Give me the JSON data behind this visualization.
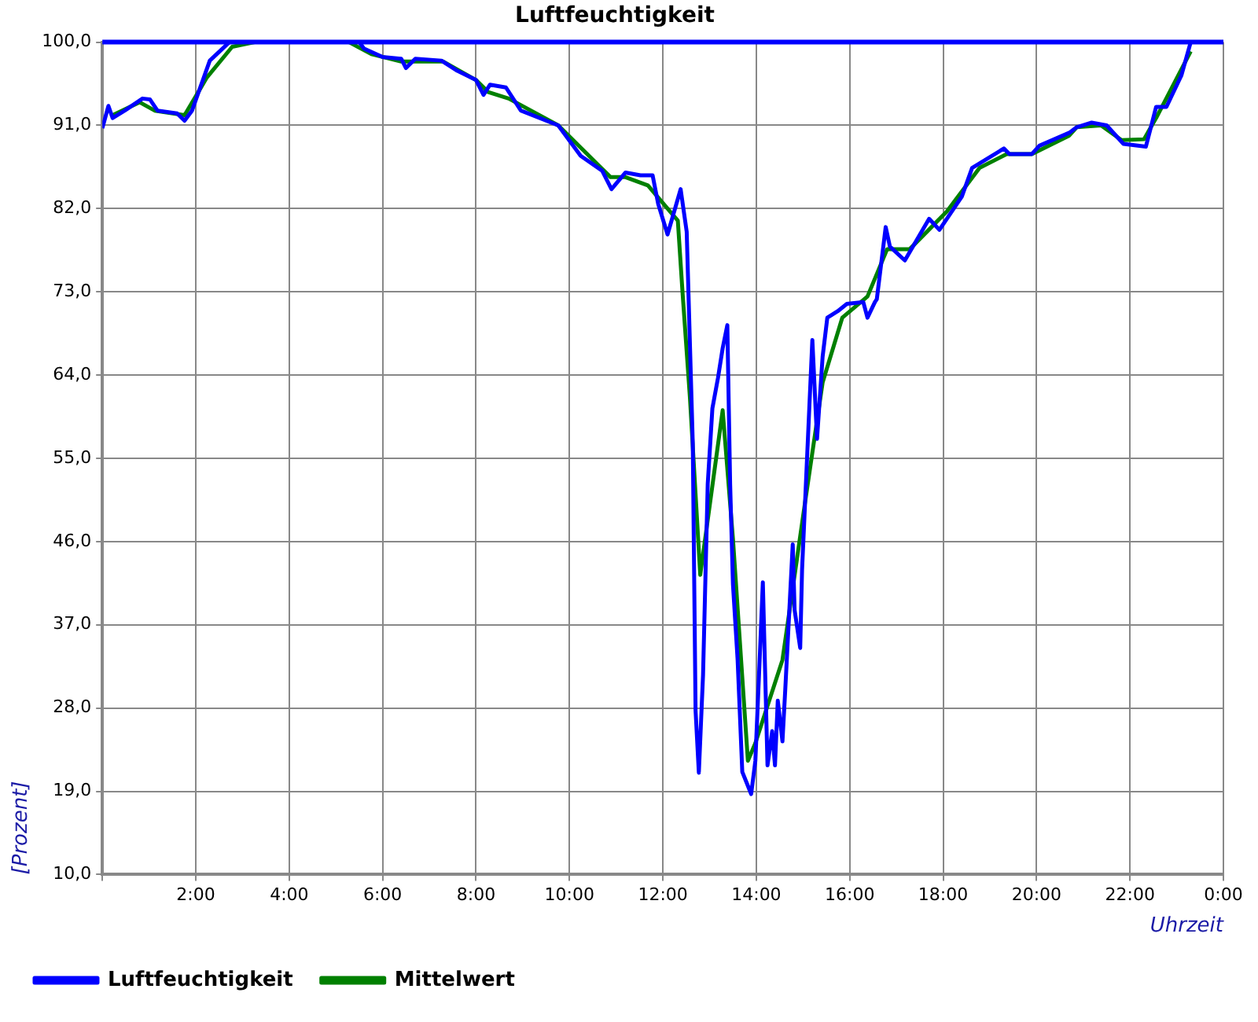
{
  "chart_data": {
    "type": "line",
    "title": "Luftfeuchtigkeit",
    "xlabel": "Uhrzeit",
    "ylabel": "[Prozent]",
    "xlim": [
      0,
      24
    ],
    "ylim": [
      10,
      100
    ],
    "xticks": [
      {
        "value": 0,
        "label": null
      },
      {
        "value": 2,
        "label": "2:00"
      },
      {
        "value": 4,
        "label": "4:00"
      },
      {
        "value": 6,
        "label": "6:00"
      },
      {
        "value": 8,
        "label": "8:00"
      },
      {
        "value": 10,
        "label": "10:00"
      },
      {
        "value": 12,
        "label": "12:00"
      },
      {
        "value": 14,
        "label": "14:00"
      },
      {
        "value": 16,
        "label": "16:00"
      },
      {
        "value": 18,
        "label": "18:00"
      },
      {
        "value": 20,
        "label": "20:00"
      },
      {
        "value": 22,
        "label": "22:00"
      },
      {
        "value": 24,
        "label": "0:00"
      }
    ],
    "yticks": [
      {
        "value": 10,
        "label": "10,0"
      },
      {
        "value": 19,
        "label": "19,0"
      },
      {
        "value": 28,
        "label": "28,0"
      },
      {
        "value": 37,
        "label": "37,0"
      },
      {
        "value": 46,
        "label": "46,0"
      },
      {
        "value": 55,
        "label": "55,0"
      },
      {
        "value": 64,
        "label": "64,0"
      },
      {
        "value": 73,
        "label": "73,0"
      },
      {
        "value": 82,
        "label": "82,0"
      },
      {
        "value": 91,
        "label": "91,0"
      },
      {
        "value": 100,
        "label": "100,0"
      }
    ],
    "grid": true,
    "legend": "bottom left",
    "marker": "none",
    "line_style": "solid",
    "ref_lines": [
      {
        "axis": "y",
        "value": 100,
        "color": "#0000ff"
      }
    ],
    "series": [
      {
        "name": "Luftfeuchtigkeit",
        "color": "#0000ff",
        "x": [
          0,
          0.13,
          0.22,
          0.48,
          0.86,
          1.02,
          1.18,
          1.6,
          1.76,
          1.92,
          2.3,
          2.72,
          5.5,
          5.6,
          6,
          6.4,
          6.5,
          6.7,
          7.26,
          7.6,
          8,
          8.16,
          8.3,
          8.64,
          8.96,
          9.76,
          10.24,
          10.7,
          10.9,
          11.2,
          11.52,
          11.78,
          11.9,
          12.1,
          12.38,
          12.51,
          12.64,
          12.7,
          12.77,
          12.86,
          12.96,
          13.06,
          13.18,
          13.28,
          13.38,
          13.44,
          13.5,
          13.6,
          13.7,
          13.89,
          13.98,
          14.08,
          14.14,
          14.24,
          14.34,
          14.4,
          14.46,
          14.56,
          14.62,
          14.78,
          14.82,
          14.94,
          14.98,
          15.2,
          15.3,
          15.42,
          15.52,
          15.74,
          15.94,
          16.29,
          16.38,
          16.54,
          16.58,
          16.77,
          16.86,
          17.18,
          17.7,
          17.92,
          18.4,
          18.62,
          19.3,
          19.42,
          19.9,
          20.06,
          20.7,
          20.86,
          21.18,
          21.5,
          21.86,
          22.34,
          22.56,
          22.78,
          23.1,
          23.3
        ],
        "values": [
          90.7,
          93.1,
          91.8,
          92.6,
          93.9,
          93.8,
          92.6,
          92.3,
          91.5,
          92.6,
          98,
          100,
          100,
          99.3,
          98.4,
          98.2,
          97.2,
          98.2,
          98,
          96.9,
          95.9,
          94.3,
          95.4,
          95.1,
          92.6,
          91,
          87.7,
          86.1,
          84.1,
          85.9,
          85.6,
          85.6,
          82.5,
          79.2,
          84.1,
          79.5,
          56.6,
          27.7,
          21,
          31.6,
          52.2,
          60.4,
          63.7,
          66.9,
          69.4,
          52.2,
          41.4,
          33.2,
          21.1,
          18.7,
          22.3,
          34.2,
          41.6,
          21.8,
          25.5,
          21.8,
          28.8,
          24.4,
          30,
          45.7,
          38.6,
          34.5,
          43,
          67.8,
          57.1,
          66,
          70.2,
          70.9,
          71.7,
          71.9,
          70.2,
          71.9,
          72.2,
          80,
          77.9,
          76.4,
          80.9,
          79.7,
          83.3,
          86.4,
          88.5,
          87.9,
          87.9,
          88.8,
          90.2,
          90.8,
          91.3,
          91,
          89,
          88.7,
          93,
          93,
          96.4,
          100
        ]
      },
      {
        "name": "Mittelwert",
        "color": "#008000",
        "x": [
          0.22,
          0.8,
          1.12,
          1.76,
          2.24,
          2.78,
          3.26,
          5.28,
          5.76,
          6.4,
          7.3,
          8,
          8.26,
          8.7,
          9.76,
          10.88,
          11.2,
          11.68,
          12.32,
          12.42,
          12.58,
          12.8,
          13.28,
          13.5,
          13.82,
          13.98,
          14.56,
          15.04,
          15.42,
          15.84,
          16.38,
          16.8,
          17.28,
          18.08,
          18.78,
          19.36,
          19.9,
          20.7,
          20.86,
          21.38,
          21.82,
          22.3,
          22.56,
          23.3
        ],
        "values": [
          92.1,
          93.5,
          92.6,
          92.1,
          96.2,
          99.5,
          100,
          100,
          98.7,
          97.9,
          97.9,
          95.9,
          94.6,
          93.9,
          91,
          85.4,
          85.4,
          84.5,
          80.7,
          73,
          61.5,
          42.4,
          60.2,
          46.3,
          22.3,
          24.2,
          33.2,
          50.1,
          63.2,
          70.2,
          72.5,
          77.6,
          77.6,
          81.7,
          86.4,
          87.9,
          87.9,
          89.9,
          90.8,
          91,
          89.4,
          89.5,
          91.8,
          99
        ]
      }
    ]
  }
}
